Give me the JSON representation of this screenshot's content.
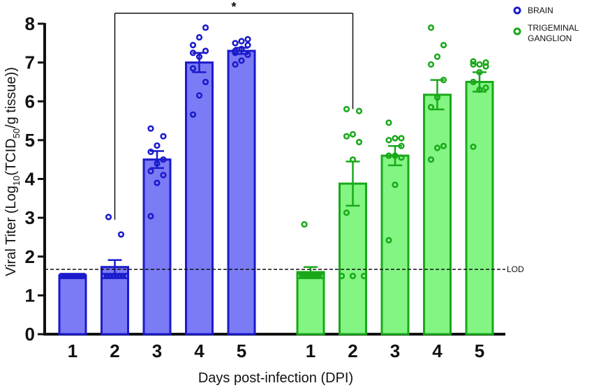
{
  "chart_data": {
    "type": "bar",
    "ylabel_main": "Viral Titer (Log",
    "ylabel_sub1": "10",
    "ylabel_mid": "(TCID",
    "ylabel_sub2": "50",
    "ylabel_end": "/g tissue))",
    "xlabel": "Days post-infection (DPI)",
    "ylim": [
      0,
      8
    ],
    "yticks": [
      "0",
      "1",
      "2",
      "3",
      "4",
      "5",
      "6",
      "7",
      "8"
    ],
    "lod": {
      "value": 1.67,
      "label": "LOD"
    },
    "significance": {
      "label": "*",
      "from_group": 0,
      "from_index": 1,
      "to_group": 1,
      "to_index": 1
    },
    "groups": [
      {
        "name": "BRAIN",
        "color": "#1a1acc",
        "fill": "#7b7bf5",
        "categories": [
          "1",
          "2",
          "3",
          "4",
          "5"
        ],
        "means": [
          1.5,
          1.73,
          4.5,
          7.0,
          7.3
        ],
        "sem": [
          0.0,
          0.18,
          0.22,
          0.25,
          0.08
        ],
        "points": [
          [
            1.5,
            1.5,
            1.5,
            1.5,
            1.5,
            1.5,
            1.5,
            1.5,
            1.5,
            1.5
          ],
          [
            1.5,
            1.5,
            1.5,
            1.5,
            1.5,
            1.5,
            1.5,
            1.5,
            2.57,
            3.02
          ],
          [
            3.04,
            3.9,
            4.1,
            4.2,
            4.4,
            4.5,
            4.7,
            4.86,
            5.1,
            5.3
          ],
          [
            5.66,
            6.15,
            6.5,
            6.85,
            7.15,
            7.3,
            7.45,
            7.65,
            7.9,
            7.25
          ],
          [
            6.95,
            7.05,
            7.2,
            7.3,
            7.35,
            7.45,
            7.5,
            7.55,
            7.6,
            7.25
          ]
        ]
      },
      {
        "name": "TRIGEMINAL GANGLION",
        "name_line1": "TRIGEMINAL",
        "name_line2": "GANGLION",
        "color": "#1aa81a",
        "fill": "#82f582",
        "categories": [
          "1",
          "2",
          "3",
          "4",
          "5"
        ],
        "means": [
          1.6,
          3.88,
          4.6,
          6.17,
          6.5
        ],
        "sem": [
          0.13,
          0.57,
          0.25,
          0.38,
          0.25
        ],
        "points": [
          [
            1.5,
            1.5,
            1.5,
            1.5,
            1.5,
            1.5,
            1.5,
            1.5,
            1.5,
            2.83
          ],
          [
            1.5,
            1.5,
            1.5,
            3.13,
            4.5,
            4.95,
            5.1,
            5.15,
            5.75,
            5.8
          ],
          [
            2.42,
            3.85,
            4.55,
            4.6,
            4.6,
            4.85,
            5.0,
            5.05,
            5.05,
            5.45
          ],
          [
            4.5,
            4.8,
            4.85,
            5.85,
            6.1,
            6.55,
            6.95,
            7.15,
            7.45,
            7.9
          ],
          [
            4.83,
            6.3,
            6.35,
            6.5,
            6.75,
            6.9,
            6.95,
            6.95,
            7.0,
            7.03
          ]
        ]
      }
    ],
    "legend_position": "top-right"
  }
}
